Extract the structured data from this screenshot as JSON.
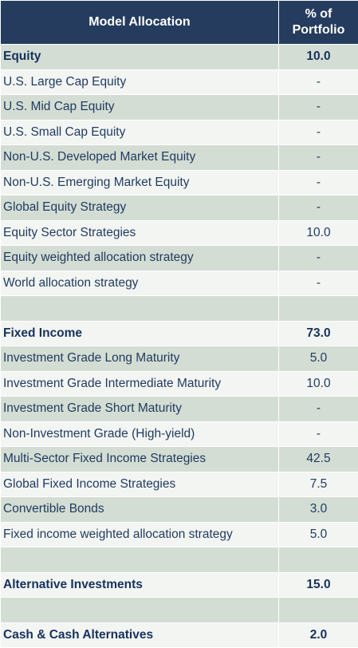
{
  "header": {
    "col1": "Model Allocation",
    "col2_line1": "% of",
    "col2_line2": "Portfolio"
  },
  "rows": [
    {
      "label": "Equity",
      "value": "10.0",
      "bold": true
    },
    {
      "label": "U.S. Large Cap Equity",
      "value": "-"
    },
    {
      "label": "U.S. Mid Cap Equity",
      "value": "-"
    },
    {
      "label": "U.S. Small Cap Equity",
      "value": "-"
    },
    {
      "label": "Non-U.S. Developed Market Equity",
      "value": "-"
    },
    {
      "label": "Non-U.S. Emerging Market Equity",
      "value": "-"
    },
    {
      "label": "Global Equity Strategy",
      "value": "-"
    },
    {
      "label": "Equity Sector Strategies",
      "value": "10.0"
    },
    {
      "label": "Equity weighted allocation strategy",
      "value": "-"
    },
    {
      "label": "World allocation strategy",
      "value": "-"
    },
    {
      "label": "",
      "value": ""
    },
    {
      "label": "Fixed Income",
      "value": "73.0",
      "bold": true
    },
    {
      "label": "Investment Grade Long Maturity",
      "value": "5.0"
    },
    {
      "label": "Investment Grade Intermediate Maturity",
      "value": "10.0"
    },
    {
      "label": "Investment Grade Short Maturity",
      "value": "-"
    },
    {
      "label": "Non-Investment Grade (High-yield)",
      "value": "-"
    },
    {
      "label": "Multi-Sector Fixed Income Strategies",
      "value": "42.5"
    },
    {
      "label": "Global Fixed Income Strategies",
      "value": "7.5"
    },
    {
      "label": "Convertible Bonds",
      "value": "3.0"
    },
    {
      "label": "Fixed income weighted allocation strategy",
      "value": "5.0"
    },
    {
      "label": "",
      "value": ""
    },
    {
      "label": "Alternative Investments",
      "value": "15.0",
      "bold": true
    },
    {
      "label": "",
      "value": ""
    },
    {
      "label": "Cash & Cash Alternatives",
      "value": "2.0",
      "bold": true
    }
  ],
  "colors": {
    "header_bg": "#253c5e",
    "row_shade": "#d4ddd4",
    "row_plain": "#f3f5f3",
    "text": "#1f3a5f"
  }
}
